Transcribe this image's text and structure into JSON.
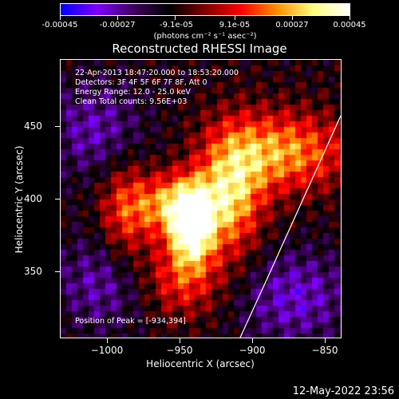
{
  "colorbar": {
    "ticks": [
      "-0.00045",
      "-0.00027",
      "-9.1e-05",
      "9.1e-05",
      "0.00027",
      "0.00045"
    ],
    "unit_label": "(photons cm⁻² s⁻¹ asec⁻²)",
    "colors": [
      "#0000ff",
      "#8000ff",
      "#400060",
      "#000000",
      "#800000",
      "#ff0000",
      "#ff9000",
      "#ffff80",
      "#ffffff"
    ]
  },
  "title": "Reconstructed RHESSI Image",
  "info": {
    "line1": "22-Apr-2013 18:47:20.000 to 18:53:20.000",
    "line2": "Detectors: 3F 4F 5F 6F 7F 8F, Att 0",
    "line3": "Energy Range: 12.0 - 25.0 keV",
    "line4": "Clean     Total counts: 9.56E+03"
  },
  "peak": "Position of Peak = [-934,394]",
  "x_axis": {
    "title": "Heliocentric X (arcsec)",
    "ticks": [
      "−1000",
      "−950",
      "−900",
      "−850"
    ],
    "range": [
      -1030,
      -837
    ]
  },
  "y_axis": {
    "title": "Heliocentric Y (arcsec)",
    "ticks": [
      "350",
      "400",
      "450"
    ],
    "range": [
      303,
      498
    ]
  },
  "timestamp": "12-May-2022 23:56"
}
